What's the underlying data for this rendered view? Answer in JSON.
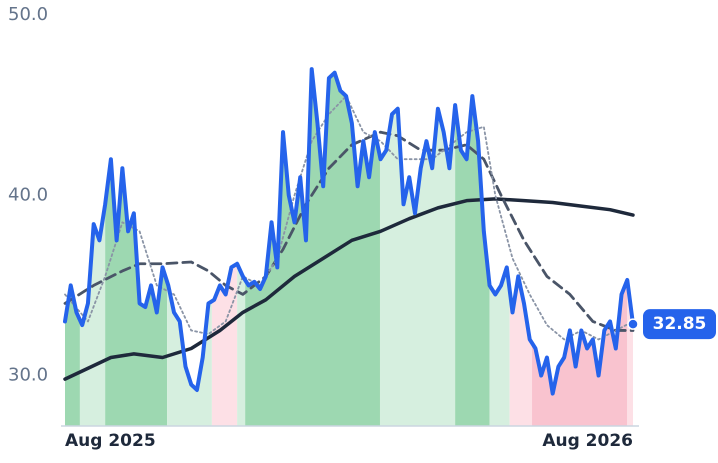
{
  "chart_data": {
    "type": "line",
    "xlim": [
      0,
      99
    ],
    "xticks": [
      {
        "value": 0,
        "label": "Aug 2025"
      },
      {
        "value": 99,
        "label": "Aug 2026"
      }
    ],
    "ylim": [
      27.2,
      50
    ],
    "yticks": [
      {
        "value": 30,
        "label": "30.0"
      },
      {
        "value": 40,
        "label": "40.0"
      },
      {
        "value": 50,
        "label": "50.0"
      }
    ],
    "bands": [
      {
        "start": 0,
        "end": 2.6,
        "color": "#9dd8b1"
      },
      {
        "start": 2.6,
        "end": 7,
        "color": "#d6efdf"
      },
      {
        "start": 7,
        "end": 17.8,
        "color": "#9dd8b1"
      },
      {
        "start": 17.8,
        "end": 25.6,
        "color": "#d6efdf"
      },
      {
        "start": 25.6,
        "end": 30,
        "color": "#fde0e6"
      },
      {
        "start": 30,
        "end": 31.4,
        "color": "#d6efdf"
      },
      {
        "start": 31.4,
        "end": 54.9,
        "color": "#9dd8b1"
      },
      {
        "start": 54.9,
        "end": 68,
        "color": "#d6efdf"
      },
      {
        "start": 68,
        "end": 74,
        "color": "#9dd8b1"
      },
      {
        "start": 74,
        "end": 77.5,
        "color": "#d6efdf"
      },
      {
        "start": 77.5,
        "end": 81.4,
        "color": "#fde0e6"
      },
      {
        "start": 81.4,
        "end": 98,
        "color": "#f9c3cf"
      },
      {
        "start": 98,
        "end": 99,
        "color": "#fde0e6"
      }
    ],
    "series": [
      {
        "color": "#2563eb",
        "width": 4,
        "dash": "none",
        "values": [
          33,
          35,
          33.5,
          32.8,
          34,
          38.4,
          37.5,
          39.5,
          42,
          37.5,
          41.5,
          38,
          39,
          34,
          33.8,
          35,
          33.5,
          36,
          35,
          33.5,
          33,
          30.5,
          29.5,
          29.2,
          31,
          34,
          34.2,
          35,
          34.5,
          36,
          36.2,
          35.5,
          35,
          35.2,
          34.8,
          35.5,
          38.5,
          36,
          43.5,
          40,
          38.5,
          41,
          37.5,
          47,
          44,
          40.5,
          46.5,
          46.8,
          45.8,
          45.5,
          44,
          40.5,
          43,
          41,
          43.5,
          42,
          42.5,
          44.5,
          44.8,
          39.5,
          41,
          39,
          41.5,
          43,
          41.5,
          44.8,
          43.5,
          41.5,
          45,
          42.5,
          42,
          45.5,
          43,
          38,
          35,
          34.5,
          35,
          36,
          33.5,
          35.5,
          34,
          32,
          31.5,
          30,
          31,
          29,
          30.5,
          31,
          32.5,
          30.5,
          32.5,
          31.5,
          32,
          30,
          32.5,
          33,
          31.5,
          34.5,
          35.3,
          32.85
        ]
      },
      {
        "color": "#8a94a6",
        "width": 1.8,
        "dash": "2 3",
        "x": [
          0,
          4,
          7,
          10,
          13,
          16,
          19,
          22,
          25,
          28,
          31,
          34,
          37,
          40,
          43,
          46,
          49,
          52,
          55,
          58,
          61,
          64,
          66,
          70,
          73,
          75,
          78,
          81,
          84,
          87,
          90,
          93,
          96,
          99
        ],
        "values": [
          34.5,
          33,
          35.5,
          38.5,
          38,
          35,
          34.5,
          32.5,
          32.3,
          33,
          35.5,
          35,
          36.5,
          40,
          43,
          44.5,
          45.5,
          43.5,
          43,
          42,
          42,
          42,
          42.5,
          43.5,
          43.8,
          40,
          36.5,
          34.5,
          32.8,
          32,
          32.5,
          32,
          32.5,
          33
        ]
      },
      {
        "color": "#4a5568",
        "width": 2.8,
        "dash": "10 6",
        "x": [
          0,
          5,
          10,
          13,
          17,
          22,
          25,
          28,
          31,
          35,
          38,
          42,
          46,
          50,
          55,
          58,
          62,
          66,
          70,
          73,
          76,
          80,
          84,
          88,
          92,
          96,
          99
        ],
        "values": [
          34,
          35,
          35.8,
          36.2,
          36.2,
          36.3,
          35.8,
          35,
          34.5,
          35.5,
          37,
          39.5,
          41.5,
          42.8,
          43.5,
          43.3,
          42.5,
          42.5,
          42.8,
          42,
          40,
          37.5,
          35.5,
          34.5,
          33,
          32.5,
          32.5
        ]
      },
      {
        "color": "#1e293b",
        "width": 3.5,
        "dash": "none",
        "x": [
          0,
          8,
          12,
          17,
          22,
          27,
          31,
          35,
          40,
          45,
          50,
          55,
          60,
          65,
          70,
          75,
          80,
          85,
          90,
          95,
          99
        ],
        "values": [
          29.8,
          31,
          31.2,
          31,
          31.5,
          32.5,
          33.5,
          34.2,
          35.5,
          36.5,
          37.5,
          38,
          38.7,
          39.3,
          39.7,
          39.8,
          39.7,
          39.6,
          39.4,
          39.2,
          38.9
        ]
      }
    ],
    "last_label_color": "#2563eb"
  }
}
